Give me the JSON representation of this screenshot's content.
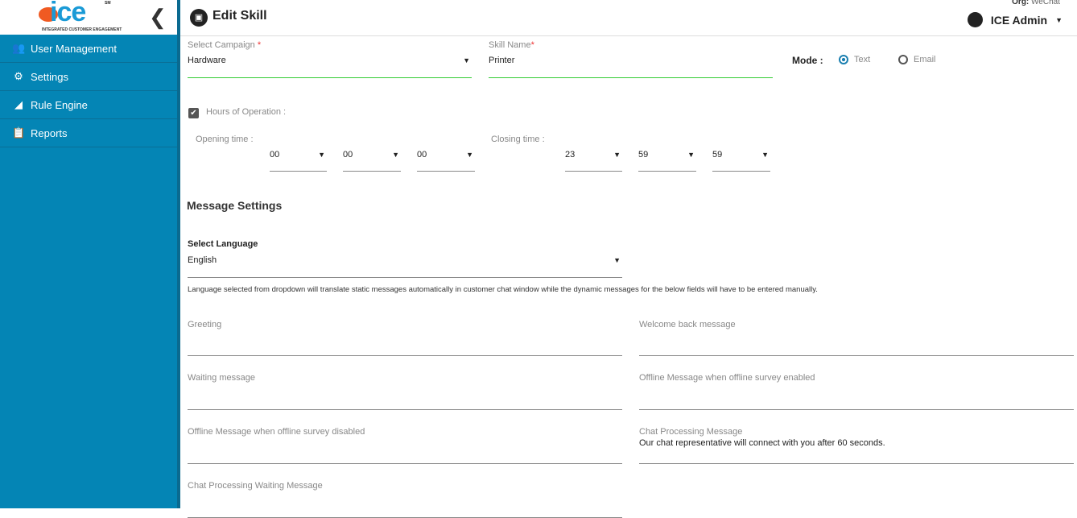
{
  "sidebar": {
    "logo_text": "ice",
    "logo_sub": "INTEGRATED CUSTOMER ENGAGEMENT",
    "logo_sm": "SM",
    "items": [
      {
        "label": "User Management",
        "icon": "users-icon"
      },
      {
        "label": "Settings",
        "icon": "gear-icon"
      },
      {
        "label": "Rule Engine",
        "icon": "rule-engine-icon"
      },
      {
        "label": "Reports",
        "icon": "clipboard-icon"
      }
    ]
  },
  "header": {
    "title": "Edit Skill",
    "org_label": "Org:",
    "org_value": "WeChat",
    "user": "ICE Admin"
  },
  "form": {
    "campaign": {
      "label": "Select Campaign",
      "required": "*",
      "value": "Hardware"
    },
    "skill": {
      "label": "Skill Name",
      "required": "*",
      "value": "Printer"
    },
    "mode": {
      "label": "Mode :",
      "options": [
        "Text",
        "Email"
      ],
      "selected": "Text"
    },
    "hours": {
      "label": "Hours of Operation :",
      "checked": true
    },
    "opening": {
      "label": "Opening time :",
      "values": [
        "00",
        "00",
        "00"
      ]
    },
    "closing": {
      "label": "Closing time :",
      "values": [
        "23",
        "59",
        "59"
      ]
    },
    "message_settings": "Message Settings",
    "language": {
      "label": "Select Language",
      "value": "English",
      "note": "Language selected from dropdown will translate static messages automatically in customer chat window while the dynamic messages for the below fields will have to be entered manually."
    },
    "fields": [
      {
        "label": "Greeting",
        "value": ""
      },
      {
        "label": "Welcome back message",
        "value": ""
      },
      {
        "label": "Waiting message",
        "value": ""
      },
      {
        "label": "Offline Message when offline survey enabled",
        "value": ""
      },
      {
        "label": "Offline Message when offline survey disabled",
        "value": ""
      },
      {
        "label": "Chat Processing Message",
        "value": "Our chat representative will connect with you after 60 seconds."
      },
      {
        "label": "Chat Processing Waiting Message",
        "value": ""
      }
    ]
  },
  "colors": {
    "sidebar": "#0485b5",
    "accent": "#1a7fb0",
    "valid": "#33cc33"
  }
}
